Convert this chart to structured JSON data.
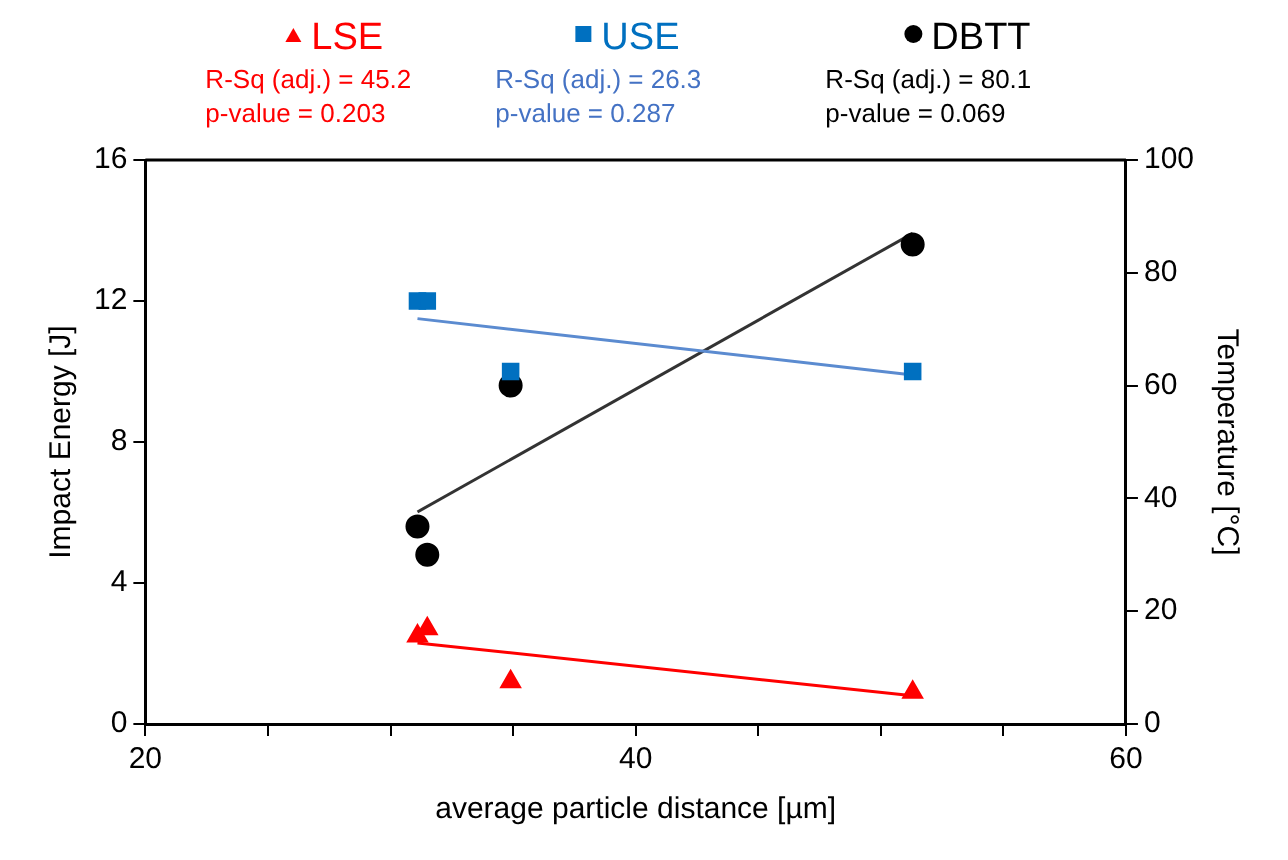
{
  "chart_data": {
    "type": "scatter",
    "xlabel": "average particle distance [µm]",
    "ylabel": "Impact Energy [J]",
    "y2label": "Temperature [°C]",
    "xlim": [
      20,
      60
    ],
    "xticks": [
      20,
      {
        "value": 25,
        "label": null
      },
      {
        "value": 30,
        "label": null
      },
      {
        "value": 35,
        "label": null
      },
      40,
      {
        "value": 45,
        "label": null
      },
      {
        "value": 50,
        "label": null
      },
      {
        "value": 55,
        "label": null
      },
      60
    ],
    "ylim": [
      0,
      16
    ],
    "yticks": [
      0,
      4,
      8,
      12,
      16
    ],
    "y2lim": [
      0,
      100
    ],
    "y2ticks": [
      0,
      20,
      40,
      60,
      80,
      100
    ],
    "grid": false,
    "legend": "top",
    "annotations": [
      "R-Sq (adj.) = 45.2",
      "p-value = 0.203",
      "R-Sq (adj.) = 26.3",
      "p-value = 0.287",
      "R-Sq (adj.) = 80.1",
      "p-value = 0.069"
    ],
    "series": [
      {
        "name": "LSE",
        "type": "scatter",
        "marker": "triangle",
        "color": "#ff0000",
        "x": [
          31.1,
          31.5,
          34.9,
          51.3
        ],
        "values": [
          2.5,
          2.7,
          1.2,
          0.9
        ]
      },
      {
        "name": "USE",
        "type": "scatter",
        "marker": "square",
        "color": "#0070c0",
        "x": [
          31.1,
          31.5,
          34.9,
          51.3
        ],
        "values": [
          12,
          12,
          10,
          10
        ]
      },
      {
        "name": "DBTT",
        "type": "scatter",
        "marker": "circle",
        "color": "#000000",
        "axis": "y2",
        "x": [
          31.1,
          31.5,
          34.9,
          51.3
        ],
        "values": [
          35,
          30,
          60,
          85
        ]
      },
      {
        "type": "line",
        "marker": "none",
        "color": "#ff0000",
        "x": [
          31.1,
          51.3
        ],
        "values": [
          2.3,
          0.8
        ]
      },
      {
        "type": "line",
        "marker": "none",
        "color": "#5b8bd0",
        "x": [
          31.1,
          51.3
        ],
        "values": [
          11.5,
          9.9
        ]
      },
      {
        "type": "line",
        "marker": "none",
        "color": "#333333",
        "axis": "y2",
        "x": [
          31.1,
          51.3
        ],
        "values": [
          37.6,
          87
        ]
      }
    ]
  }
}
